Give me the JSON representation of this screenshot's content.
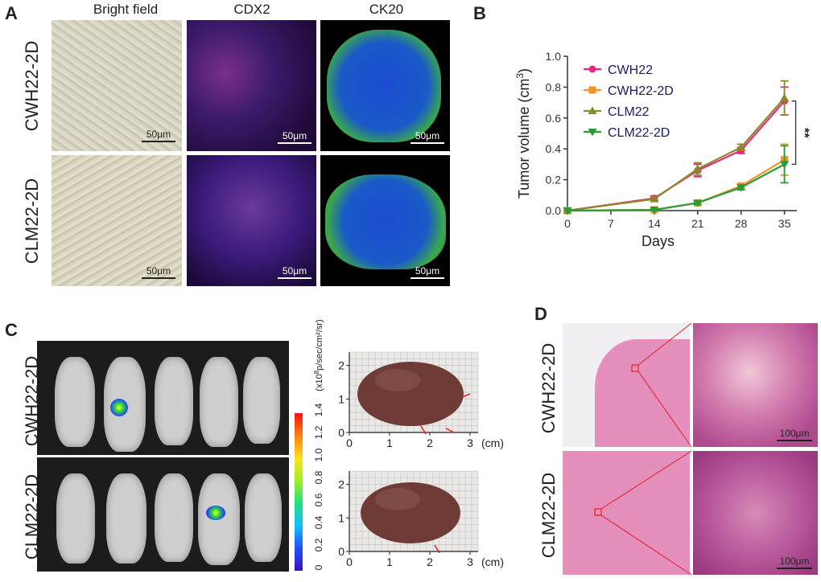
{
  "panelA": {
    "letter": "A",
    "columns": [
      "Bright field",
      "CDX2",
      "CK20"
    ],
    "rows": [
      "CWH22-2D",
      "CLM22-2D"
    ],
    "scalebar": "50μm"
  },
  "panelB": {
    "letter": "B",
    "significance": "**"
  },
  "chart_data": {
    "type": "line",
    "xlabel": "Days",
    "ylabel": "Tumor volume (cm",
    "ylabel_sup": "3",
    "ylabel_end": ")",
    "x": [
      0,
      14,
      21,
      28,
      35
    ],
    "xticks": [
      "0",
      "7",
      "14",
      "21",
      "28",
      "35"
    ],
    "xtick_values": [
      0,
      7,
      14,
      21,
      28,
      35
    ],
    "yticks": [
      "0.0",
      "0.2",
      "0.4",
      "0.6",
      "0.8",
      "1.0"
    ],
    "ylim": [
      0,
      1.0
    ],
    "xlim": [
      0,
      37
    ],
    "legend_position": "top-left",
    "series": [
      {
        "name": "CWH22",
        "color": "#e8287c",
        "marker": "circle",
        "values": [
          0,
          0.08,
          0.26,
          0.39,
          0.71
        ],
        "err": [
          0,
          0.015,
          0.04,
          0.02,
          0.09
        ]
      },
      {
        "name": "CWH22-2D",
        "color": "#f39322",
        "marker": "square",
        "values": [
          0,
          0.005,
          0.05,
          0.16,
          0.33
        ],
        "err": [
          0,
          0.005,
          0.01,
          0.015,
          0.1
        ]
      },
      {
        "name": "CLM22",
        "color": "#8a8a2a",
        "marker": "triangle-up",
        "values": [
          0,
          0.075,
          0.27,
          0.41,
          0.73
        ],
        "err": [
          0,
          0.015,
          0.04,
          0.02,
          0.11
        ]
      },
      {
        "name": "CLM22-2D",
        "color": "#2a9a3a",
        "marker": "triangle-down",
        "values": [
          0,
          0.005,
          0.05,
          0.15,
          0.3
        ],
        "err": [
          0,
          0.005,
          0.01,
          0.015,
          0.12
        ]
      }
    ]
  },
  "panelC": {
    "letter": "C",
    "rows": [
      "CWH22-2D",
      "CLM22-2D"
    ],
    "colorbar_label": "(x10",
    "colorbar_sup": "8",
    "colorbar_unit": "p/sec/cm²/sr)",
    "colorbar_ticks": [
      "0",
      "0.2",
      "0.4",
      "0.6",
      "0.8",
      "1.0",
      "1.2",
      "1.4"
    ],
    "grid_xticks": [
      "0",
      "1",
      "2",
      "3"
    ],
    "grid_yticks": [
      "0",
      "1",
      "2"
    ],
    "unit": "(cm)"
  },
  "panelD": {
    "letter": "D",
    "rows": [
      "CWH22-2D",
      "CLM22-2D"
    ],
    "scalebar": "100μm"
  }
}
